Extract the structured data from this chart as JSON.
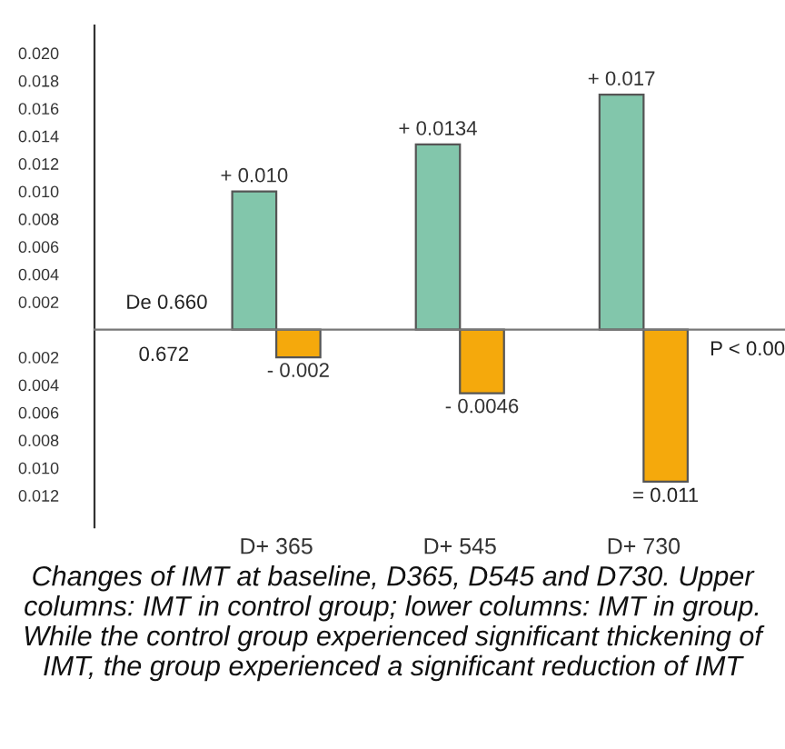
{
  "chart_data": {
    "type": "bar",
    "categories": [
      "D+ 365",
      "D+ 545",
      "D+ 730"
    ],
    "series": [
      {
        "color": "#82c6ab",
        "values": [
          0.01,
          0.0134,
          0.017
        ],
        "value_labels": [
          "+ 0.010",
          "+ 0.0134",
          "+ 0.017"
        ]
      },
      {
        "color": "#f5a90c",
        "values": [
          -0.002,
          -0.0046,
          -0.011
        ],
        "value_labels": [
          "- 0.002",
          "- 0.0046",
          null
        ]
      }
    ],
    "ylim": [
      -0.0143,
      0.022
    ],
    "yticks": [
      {
        "value": -0.012,
        "label": "0.012"
      },
      {
        "value": -0.01,
        "label": "0.010"
      },
      {
        "value": -0.008,
        "label": "0.008"
      },
      {
        "value": -0.006,
        "label": "0.006"
      },
      {
        "value": -0.004,
        "label": "0.004"
      },
      {
        "value": -0.002,
        "label": "0.002"
      },
      {
        "value": 0.002,
        "label": "0.002"
      },
      {
        "value": 0.004,
        "label": "0.004"
      },
      {
        "value": 0.006,
        "label": "0.006"
      },
      {
        "value": 0.008,
        "label": "0.008"
      },
      {
        "value": 0.01,
        "label": "0.010"
      },
      {
        "value": 0.012,
        "label": "0.012"
      },
      {
        "value": 0.014,
        "label": "0.014"
      },
      {
        "value": 0.016,
        "label": "0.016"
      },
      {
        "value": 0.018,
        "label": "0.018"
      },
      {
        "value": 0.02,
        "label": "0.020"
      }
    ],
    "grid": false,
    "annotations": [
      "De 0.660",
      "0.672",
      "P < 0.00",
      "= 0.011",
      "Changes of IMT at baseline, D365, D545 and D730. Upper columns: IMT in control group; lower columns: IMT in group. While the control group experienced significant thickening of IMT, the group experienced a significant reduction of IMT"
    ]
  }
}
